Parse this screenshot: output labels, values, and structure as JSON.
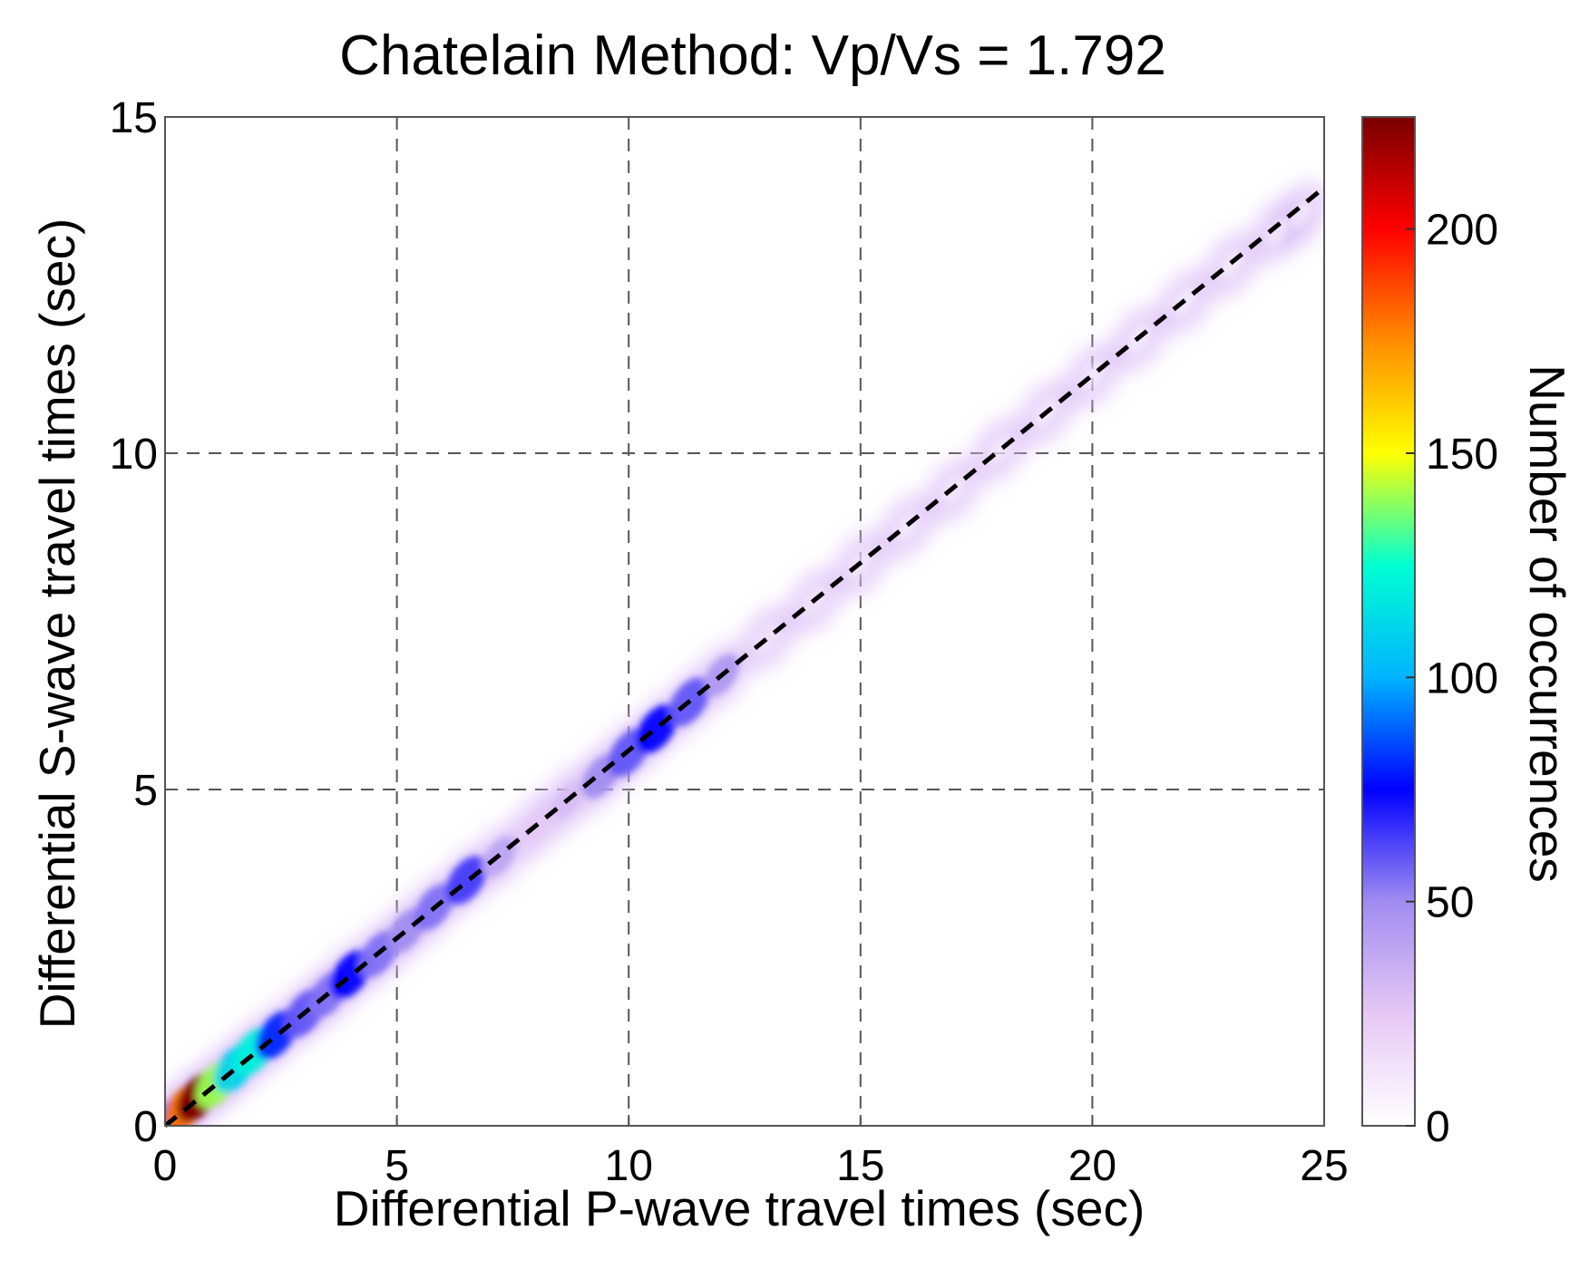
{
  "chart_data": {
    "type": "heatmap",
    "title": "Chatelain Method: Vp/Vs = 1.792",
    "xlabel": "Differential  P-wave travel times (sec)",
    "ylabel": "Differential  S-wave travel times (sec)",
    "xlim": [
      0,
      25
    ],
    "ylim": [
      0,
      15
    ],
    "xticks": [
      0,
      5,
      10,
      15,
      20,
      25
    ],
    "yticks": [
      0,
      5,
      10,
      15
    ],
    "grid": true,
    "fit_line": {
      "label": "Vp/Vs = 1.792",
      "slope": 0.558,
      "intercept": 0.0,
      "style": "dashed"
    },
    "density_ridge": [
      {
        "x": 0.1,
        "y": 0.06,
        "count": 90
      },
      {
        "x": 0.4,
        "y": 0.25,
        "count": 180
      },
      {
        "x": 0.7,
        "y": 0.42,
        "count": 225
      },
      {
        "x": 1.1,
        "y": 0.62,
        "count": 140
      },
      {
        "x": 1.5,
        "y": 0.85,
        "count": 110
      },
      {
        "x": 1.9,
        "y": 1.1,
        "count": 120
      },
      {
        "x": 2.4,
        "y": 1.35,
        "count": 80
      },
      {
        "x": 3.0,
        "y": 1.67,
        "count": 60
      },
      {
        "x": 3.5,
        "y": 1.95,
        "count": 55
      },
      {
        "x": 4.0,
        "y": 2.25,
        "count": 75
      },
      {
        "x": 4.6,
        "y": 2.55,
        "count": 55
      },
      {
        "x": 5.2,
        "y": 2.9,
        "count": 50
      },
      {
        "x": 5.8,
        "y": 3.25,
        "count": 55
      },
      {
        "x": 6.5,
        "y": 3.65,
        "count": 65
      },
      {
        "x": 7.2,
        "y": 4.0,
        "count": 40
      },
      {
        "x": 8.0,
        "y": 4.45,
        "count": 25
      },
      {
        "x": 8.7,
        "y": 4.85,
        "count": 30
      },
      {
        "x": 9.4,
        "y": 5.2,
        "count": 50
      },
      {
        "x": 10.0,
        "y": 5.55,
        "count": 60
      },
      {
        "x": 10.6,
        "y": 5.9,
        "count": 75
      },
      {
        "x": 11.3,
        "y": 6.3,
        "count": 60
      },
      {
        "x": 12.0,
        "y": 6.7,
        "count": 45
      },
      {
        "x": 13.0,
        "y": 7.25,
        "count": 10
      },
      {
        "x": 14.0,
        "y": 7.8,
        "count": 8
      },
      {
        "x": 15.0,
        "y": 8.35,
        "count": 6
      },
      {
        "x": 16.0,
        "y": 8.9,
        "count": 5
      },
      {
        "x": 17.0,
        "y": 9.45,
        "count": 4
      },
      {
        "x": 18.0,
        "y": 10.05,
        "count": 4
      },
      {
        "x": 19.0,
        "y": 10.6,
        "count": 3
      },
      {
        "x": 20.0,
        "y": 11.15,
        "count": 3
      },
      {
        "x": 21.0,
        "y": 11.7,
        "count": 2
      },
      {
        "x": 22.0,
        "y": 12.25,
        "count": 2
      },
      {
        "x": 23.0,
        "y": 12.8,
        "count": 2
      },
      {
        "x": 24.0,
        "y": 13.3,
        "count": 2
      },
      {
        "x": 24.5,
        "y": 13.55,
        "count": 2
      }
    ],
    "colorbar": {
      "label": "Number of occurrences",
      "min": 0,
      "max": 225,
      "ticks": [
        0,
        50,
        100,
        150,
        200
      ],
      "colormap": [
        "#ffffff",
        "#e6c8f5",
        "#a08cf0",
        "#0000ff",
        "#00b4ff",
        "#00ffd2",
        "#ffff00",
        "#ff8c00",
        "#ff0000",
        "#780000"
      ]
    }
  }
}
